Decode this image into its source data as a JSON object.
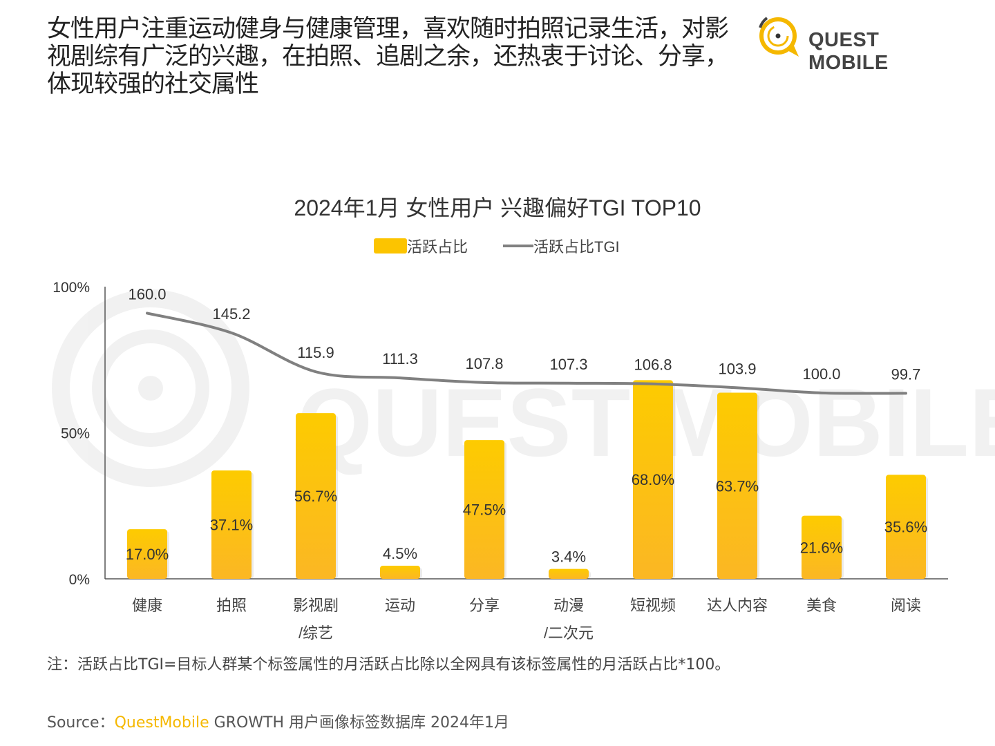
{
  "headline": "女性用户注重运动健身与健康管理，喜欢随时拍照记录生活，对影视剧综有广泛的兴趣，在拍照、追剧之余，还热衷于讨论、分享，体现较强的社交属性",
  "logo": {
    "text": "QUEST MOBILE",
    "color": "#f5b800"
  },
  "watermark": "QUEST MOBILE",
  "chart_data": {
    "type": "bar",
    "title": "2024年1月 女性用户 兴趣偏好TGI TOP10",
    "legend_position": "top",
    "grid": false,
    "categories": [
      [
        "健康"
      ],
      [
        "拍照"
      ],
      [
        "影视剧",
        "/综艺"
      ],
      [
        "运动"
      ],
      [
        "分享"
      ],
      [
        "动漫",
        "/二次元"
      ],
      [
        "短视频"
      ],
      [
        "达人内容"
      ],
      [
        "美食"
      ],
      [
        "阅读"
      ]
    ],
    "y_ticks": [
      "100%",
      "50%",
      "0%"
    ],
    "ylim": [
      0,
      100
    ],
    "y2lim": [
      -40,
      180
    ],
    "series": [
      {
        "name": "活跃占比",
        "type": "bar",
        "color": "#fcc400",
        "values": [
          17.0,
          37.1,
          56.7,
          4.5,
          47.5,
          3.4,
          68.0,
          63.7,
          21.6,
          35.6
        ],
        "labels": [
          "17.0%",
          "37.1%",
          "56.7%",
          "4.5%",
          "47.5%",
          "3.4%",
          "68.0%",
          "63.7%",
          "21.6%",
          "35.6%"
        ]
      },
      {
        "name": "活跃占比TGI",
        "type": "line",
        "axis": "secondary",
        "color": "#808080",
        "values": [
          160.0,
          145.2,
          115.9,
          111.3,
          107.8,
          107.3,
          106.8,
          103.9,
          100.0,
          99.7
        ],
        "labels": [
          "160.0",
          "145.2",
          "115.9",
          "111.3",
          "107.8",
          "107.3",
          "106.8",
          "103.9",
          "100.0",
          "99.7"
        ]
      }
    ]
  },
  "note": "注：活跃占比TGI=目标人群某个标签属性的月活跃占比除以全网具有该标签属性的月活跃占比*100。",
  "source": {
    "prefix": "Source：",
    "brand": "QuestMobile",
    "rest": " GROWTH 用户画像标签数据库 2024年1月"
  }
}
